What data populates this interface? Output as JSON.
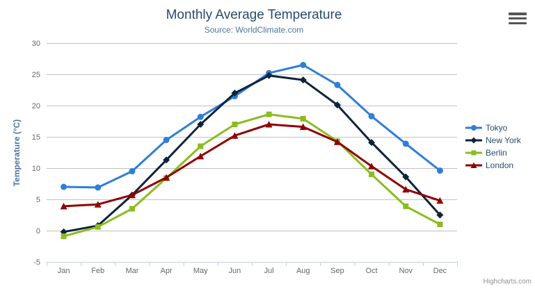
{
  "chart_data": {
    "type": "line",
    "title": "Monthly Average Temperature",
    "subtitle": "Source: WorldClimate.com",
    "categories": [
      "Jan",
      "Feb",
      "Mar",
      "Apr",
      "May",
      "Jun",
      "Jul",
      "Aug",
      "Sep",
      "Oct",
      "Nov",
      "Dec"
    ],
    "xlabel": "",
    "ylabel": "Temperature (°C)",
    "ylim": [
      -5,
      30
    ],
    "ytick_step": 5,
    "yticks": [
      -5,
      0,
      5,
      10,
      15,
      20,
      25,
      30
    ],
    "grid": true,
    "legend_position": "right",
    "series": [
      {
        "name": "Tokyo",
        "color": "#2f7ed8",
        "marker": "circle",
        "values": [
          7.0,
          6.9,
          9.5,
          14.5,
          18.2,
          21.5,
          25.2,
          26.5,
          23.3,
          18.3,
          13.9,
          9.6
        ]
      },
      {
        "name": "New York",
        "color": "#0d233a",
        "marker": "diamond",
        "values": [
          -0.2,
          0.8,
          5.7,
          11.3,
          17.0,
          22.0,
          24.8,
          24.1,
          20.1,
          14.1,
          8.6,
          2.5
        ]
      },
      {
        "name": "Berlin",
        "color": "#8bbc21",
        "marker": "square",
        "values": [
          -0.9,
          0.6,
          3.5,
          8.4,
          13.5,
          17.0,
          18.6,
          17.9,
          14.3,
          9.0,
          3.9,
          1.0
        ]
      },
      {
        "name": "London",
        "color": "#910000",
        "marker": "triangle",
        "values": [
          3.9,
          4.2,
          5.7,
          8.5,
          11.9,
          15.2,
          17.0,
          16.6,
          14.2,
          10.3,
          6.6,
          4.8
        ]
      }
    ]
  },
  "context_menu": {
    "icon": "hamburger-icon"
  },
  "credits": {
    "label": "Highcharts.com"
  },
  "colors": {
    "title": "#274b6d",
    "subtitle": "#4d759e",
    "axis_title": "#4d759e",
    "axis_label": "#666666",
    "grid_line": "#c0c0c0",
    "axis_line": "#c0d0e0",
    "legend_text": "#274b6d",
    "credits_text": "#909090",
    "menu_icon": "#555555"
  }
}
